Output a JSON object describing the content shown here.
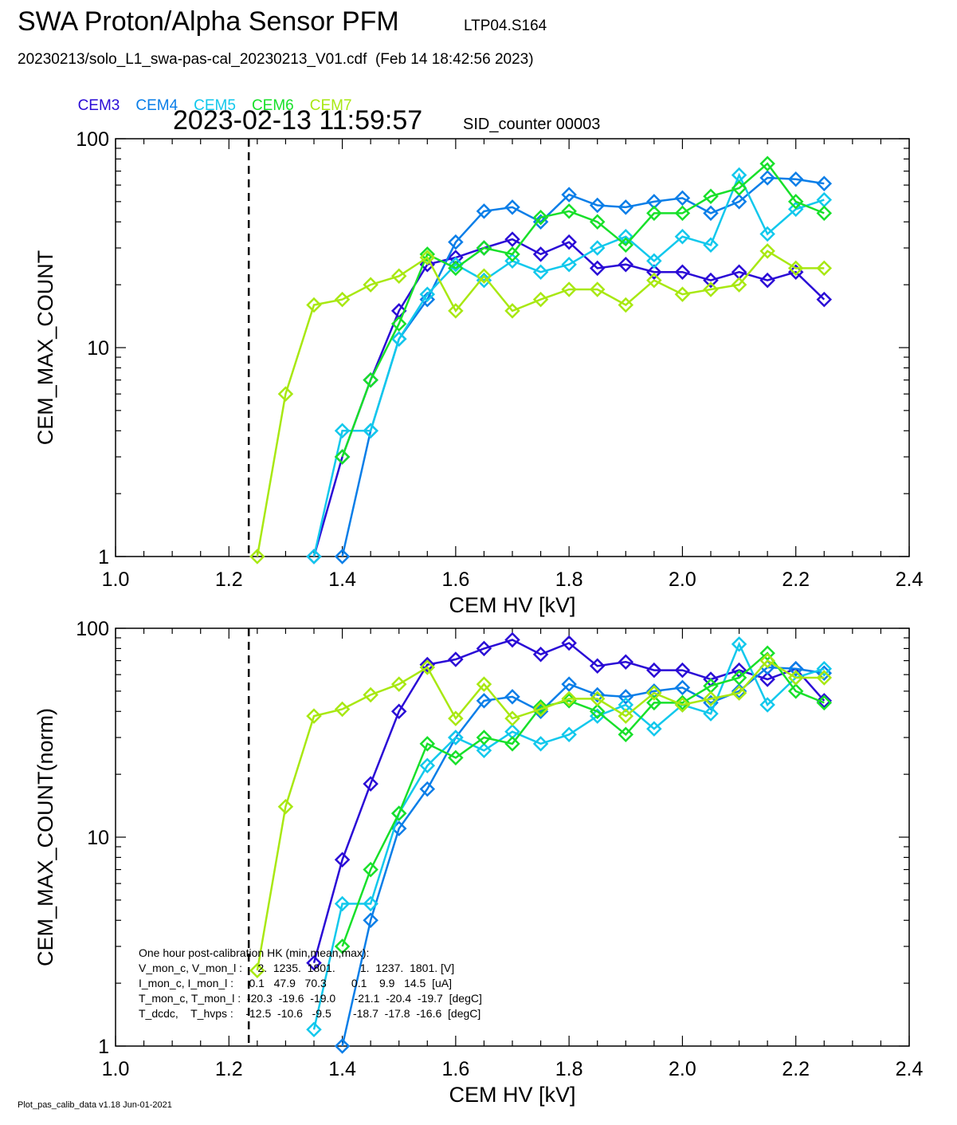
{
  "header": {
    "title": "SWA Proton/Alpha Sensor PFM",
    "run_id": "LTP04.S164",
    "file_line": "20230213/solo_L1_swa-pas-cal_20230213_V01.cdf  (Feb 14 18:42:56 2023)",
    "timestamp": "2023-02-13 11:59:57",
    "sid": "SID_counter 00003"
  },
  "legend": [
    {
      "label": "CEM3",
      "color": "#2a0bd6"
    },
    {
      "label": "CEM4",
      "color": "#0a7ee8"
    },
    {
      "label": "CEM5",
      "color": "#12c8ec"
    },
    {
      "label": "CEM6",
      "color": "#18e02a"
    },
    {
      "label": "CEM7",
      "color": "#a8e812"
    }
  ],
  "footer": "Plot_pas_calib_data v1.18 Jun-01-2021",
  "hk_text": [
    "One hour post-calibration HK (min,mean,max):",
    "V_mon_c, V_mon_l :     2.  1235.  1801.        1.  1237.  1801. [V]",
    "I_mon_c, I_mon_l :     0.1   47.9   70.3        0.1    9.9   14.5  [uA]",
    "T_mon_c, T_mon_l :  -20.3  -19.6  -19.0      -21.1  -20.4  -19.7  [degC]",
    "T_dcdc,    T_hvps :    -12.5  -10.6   -9.5       -18.7  -17.8  -16.6  [degC]"
  ],
  "chart_data": [
    {
      "type": "line",
      "ylabel": "CEM_MAX_COUNT",
      "xlabel": "CEM HV [kV]",
      "xlim": [
        1.0,
        2.4
      ],
      "ylim": [
        1,
        100
      ],
      "yscale": "log",
      "xticks": [
        "1.0",
        "1.2",
        "1.4",
        "1.6",
        "1.8",
        "2.0",
        "2.2",
        "2.4"
      ],
      "yticks": [
        "1",
        "10",
        "100"
      ],
      "vline": 1.235,
      "series": [
        {
          "name": "CEM3",
          "color": "#2a0bd6",
          "x": [
            1.35,
            1.4,
            1.45,
            1.5,
            1.55,
            1.6,
            1.65,
            1.7,
            1.75,
            1.8,
            1.85,
            1.9,
            1.95,
            2.0,
            2.05,
            2.1,
            2.15,
            2.2,
            2.25
          ],
          "y": [
            1,
            3,
            7,
            15,
            25,
            27,
            30,
            33,
            28,
            32,
            24,
            25,
            23,
            23,
            21,
            23,
            21,
            23,
            17
          ]
        },
        {
          "name": "CEM4",
          "color": "#0a7ee8",
          "x": [
            1.4,
            1.45,
            1.5,
            1.55,
            1.6,
            1.65,
            1.7,
            1.75,
            1.8,
            1.85,
            1.9,
            1.95,
            2.0,
            2.05,
            2.1,
            2.15,
            2.2,
            2.25
          ],
          "y": [
            1,
            4,
            11,
            17,
            32,
            45,
            47,
            40,
            54,
            48,
            47,
            50,
            52,
            44,
            50,
            65,
            64,
            61
          ]
        },
        {
          "name": "CEM5",
          "color": "#12c8ec",
          "x": [
            1.35,
            1.4,
            1.45,
            1.5,
            1.55,
            1.6,
            1.65,
            1.7,
            1.75,
            1.8,
            1.85,
            1.9,
            1.95,
            2.0,
            2.05,
            2.1,
            2.15,
            2.2,
            2.25
          ],
          "y": [
            1,
            4,
            4,
            11,
            18,
            25,
            21,
            26,
            23,
            25,
            30,
            34,
            26,
            34,
            31,
            67,
            35,
            46,
            51
          ]
        },
        {
          "name": "CEM6",
          "color": "#18e02a",
          "x": [
            1.4,
            1.45,
            1.5,
            1.55,
            1.6,
            1.65,
            1.7,
            1.75,
            1.8,
            1.85,
            1.9,
            1.95,
            2.0,
            2.05,
            2.1,
            2.15,
            2.2,
            2.25
          ],
          "y": [
            3,
            7,
            13,
            28,
            24,
            30,
            28,
            42,
            45,
            40,
            31,
            44,
            44,
            53,
            58,
            76,
            50,
            44
          ]
        },
        {
          "name": "CEM7",
          "color": "#a8e812",
          "x": [
            1.25,
            1.3,
            1.35,
            1.4,
            1.45,
            1.5,
            1.55,
            1.6,
            1.65,
            1.7,
            1.75,
            1.8,
            1.85,
            1.9,
            1.95,
            2.0,
            2.05,
            2.1,
            2.15,
            2.2,
            2.25
          ],
          "y": [
            1,
            6,
            16,
            17,
            20,
            22,
            27,
            15,
            22,
            15,
            17,
            19,
            19,
            16,
            21,
            18,
            19,
            20,
            29,
            24,
            24
          ]
        }
      ]
    },
    {
      "type": "line",
      "ylabel": "CEM_MAX_COUNT(norm)",
      "xlabel": "CEM HV [kV]",
      "xlim": [
        1.0,
        2.4
      ],
      "ylim": [
        1,
        100
      ],
      "yscale": "log",
      "xticks": [
        "1.0",
        "1.2",
        "1.4",
        "1.6",
        "1.8",
        "2.0",
        "2.2",
        "2.4"
      ],
      "yticks": [
        "1",
        "10",
        "100"
      ],
      "vline": 1.235,
      "series": [
        {
          "name": "CEM3",
          "color": "#2a0bd6",
          "x": [
            1.35,
            1.4,
            1.45,
            1.5,
            1.55,
            1.6,
            1.65,
            1.7,
            1.75,
            1.8,
            1.85,
            1.9,
            1.95,
            2.0,
            2.05,
            2.1,
            2.15,
            2.2,
            2.25
          ],
          "y": [
            2.5,
            7.8,
            18,
            40,
            67,
            71,
            80,
            88,
            75,
            85,
            66,
            69,
            63,
            63,
            57,
            63,
            57,
            64,
            45
          ]
        },
        {
          "name": "CEM4",
          "color": "#0a7ee8",
          "x": [
            1.4,
            1.45,
            1.5,
            1.55,
            1.6,
            1.65,
            1.7,
            1.75,
            1.8,
            1.85,
            1.9,
            1.95,
            2.0,
            2.05,
            2.1,
            2.15,
            2.2,
            2.25
          ],
          "y": [
            1,
            4,
            11,
            17,
            30,
            45,
            47,
            40,
            54,
            48,
            47,
            50,
            52,
            44,
            50,
            65,
            64,
            61
          ]
        },
        {
          "name": "CEM5",
          "color": "#12c8ec",
          "x": [
            1.35,
            1.4,
            1.45,
            1.5,
            1.55,
            1.6,
            1.65,
            1.7,
            1.75,
            1.8,
            1.85,
            1.9,
            1.95,
            2.0,
            2.05,
            2.1,
            2.15,
            2.2,
            2.25
          ],
          "y": [
            1.2,
            4.8,
            4.8,
            13,
            22,
            30,
            26,
            32,
            28,
            31,
            38,
            43,
            33,
            43,
            39,
            84,
            43,
            58,
            64
          ]
        },
        {
          "name": "CEM6",
          "color": "#18e02a",
          "x": [
            1.4,
            1.45,
            1.5,
            1.55,
            1.6,
            1.65,
            1.7,
            1.75,
            1.8,
            1.85,
            1.9,
            1.95,
            2.0,
            2.05,
            2.1,
            2.15,
            2.2,
            2.25
          ],
          "y": [
            3,
            7,
            13,
            28,
            24,
            30,
            28,
            42,
            45,
            40,
            31,
            44,
            44,
            53,
            58,
            76,
            50,
            44
          ]
        },
        {
          "name": "CEM7",
          "color": "#a8e812",
          "x": [
            1.25,
            1.3,
            1.35,
            1.4,
            1.45,
            1.5,
            1.55,
            1.6,
            1.65,
            1.7,
            1.75,
            1.8,
            1.85,
            1.9,
            1.95,
            2.0,
            2.05,
            2.1,
            2.15,
            2.2,
            2.25
          ],
          "y": [
            2.3,
            14,
            38,
            41,
            48,
            54,
            65,
            37,
            54,
            37,
            41,
            46,
            46,
            38,
            49,
            43,
            46,
            49,
            70,
            58,
            58
          ]
        }
      ]
    }
  ]
}
